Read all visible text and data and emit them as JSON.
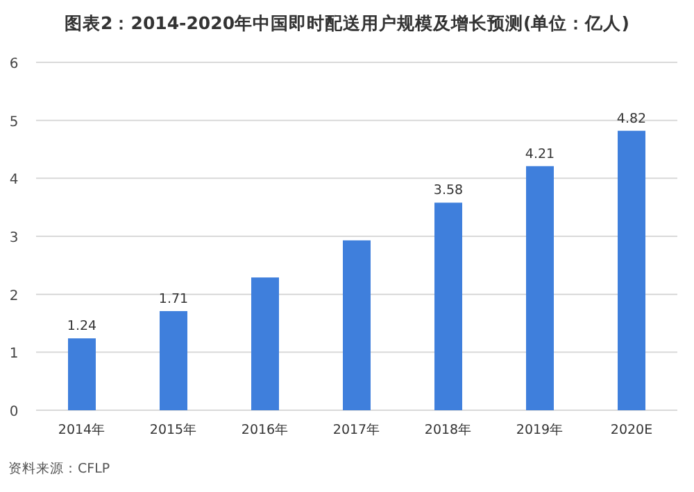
{
  "chart_data": {
    "type": "bar",
    "title": "图表2：2014-2020年中国即时配送用户规模及增长预测(单位：亿人)",
    "categories": [
      "2014年",
      "2015年",
      "2016年",
      "2017年",
      "2018年",
      "2019年",
      "2020E"
    ],
    "values": [
      1.24,
      1.71,
      2.29,
      2.93,
      3.58,
      4.21,
      4.82
    ],
    "value_labels": [
      "1.24",
      "1.71",
      null,
      null,
      "3.58",
      "4.21",
      "4.82"
    ],
    "color": "#3f7fdc",
    "ylim": [
      0,
      6
    ],
    "yticks": [
      0,
      1,
      2,
      3,
      4,
      5,
      6
    ],
    "grid": "y",
    "annotations": [
      "资料来源：CFLP"
    ]
  }
}
